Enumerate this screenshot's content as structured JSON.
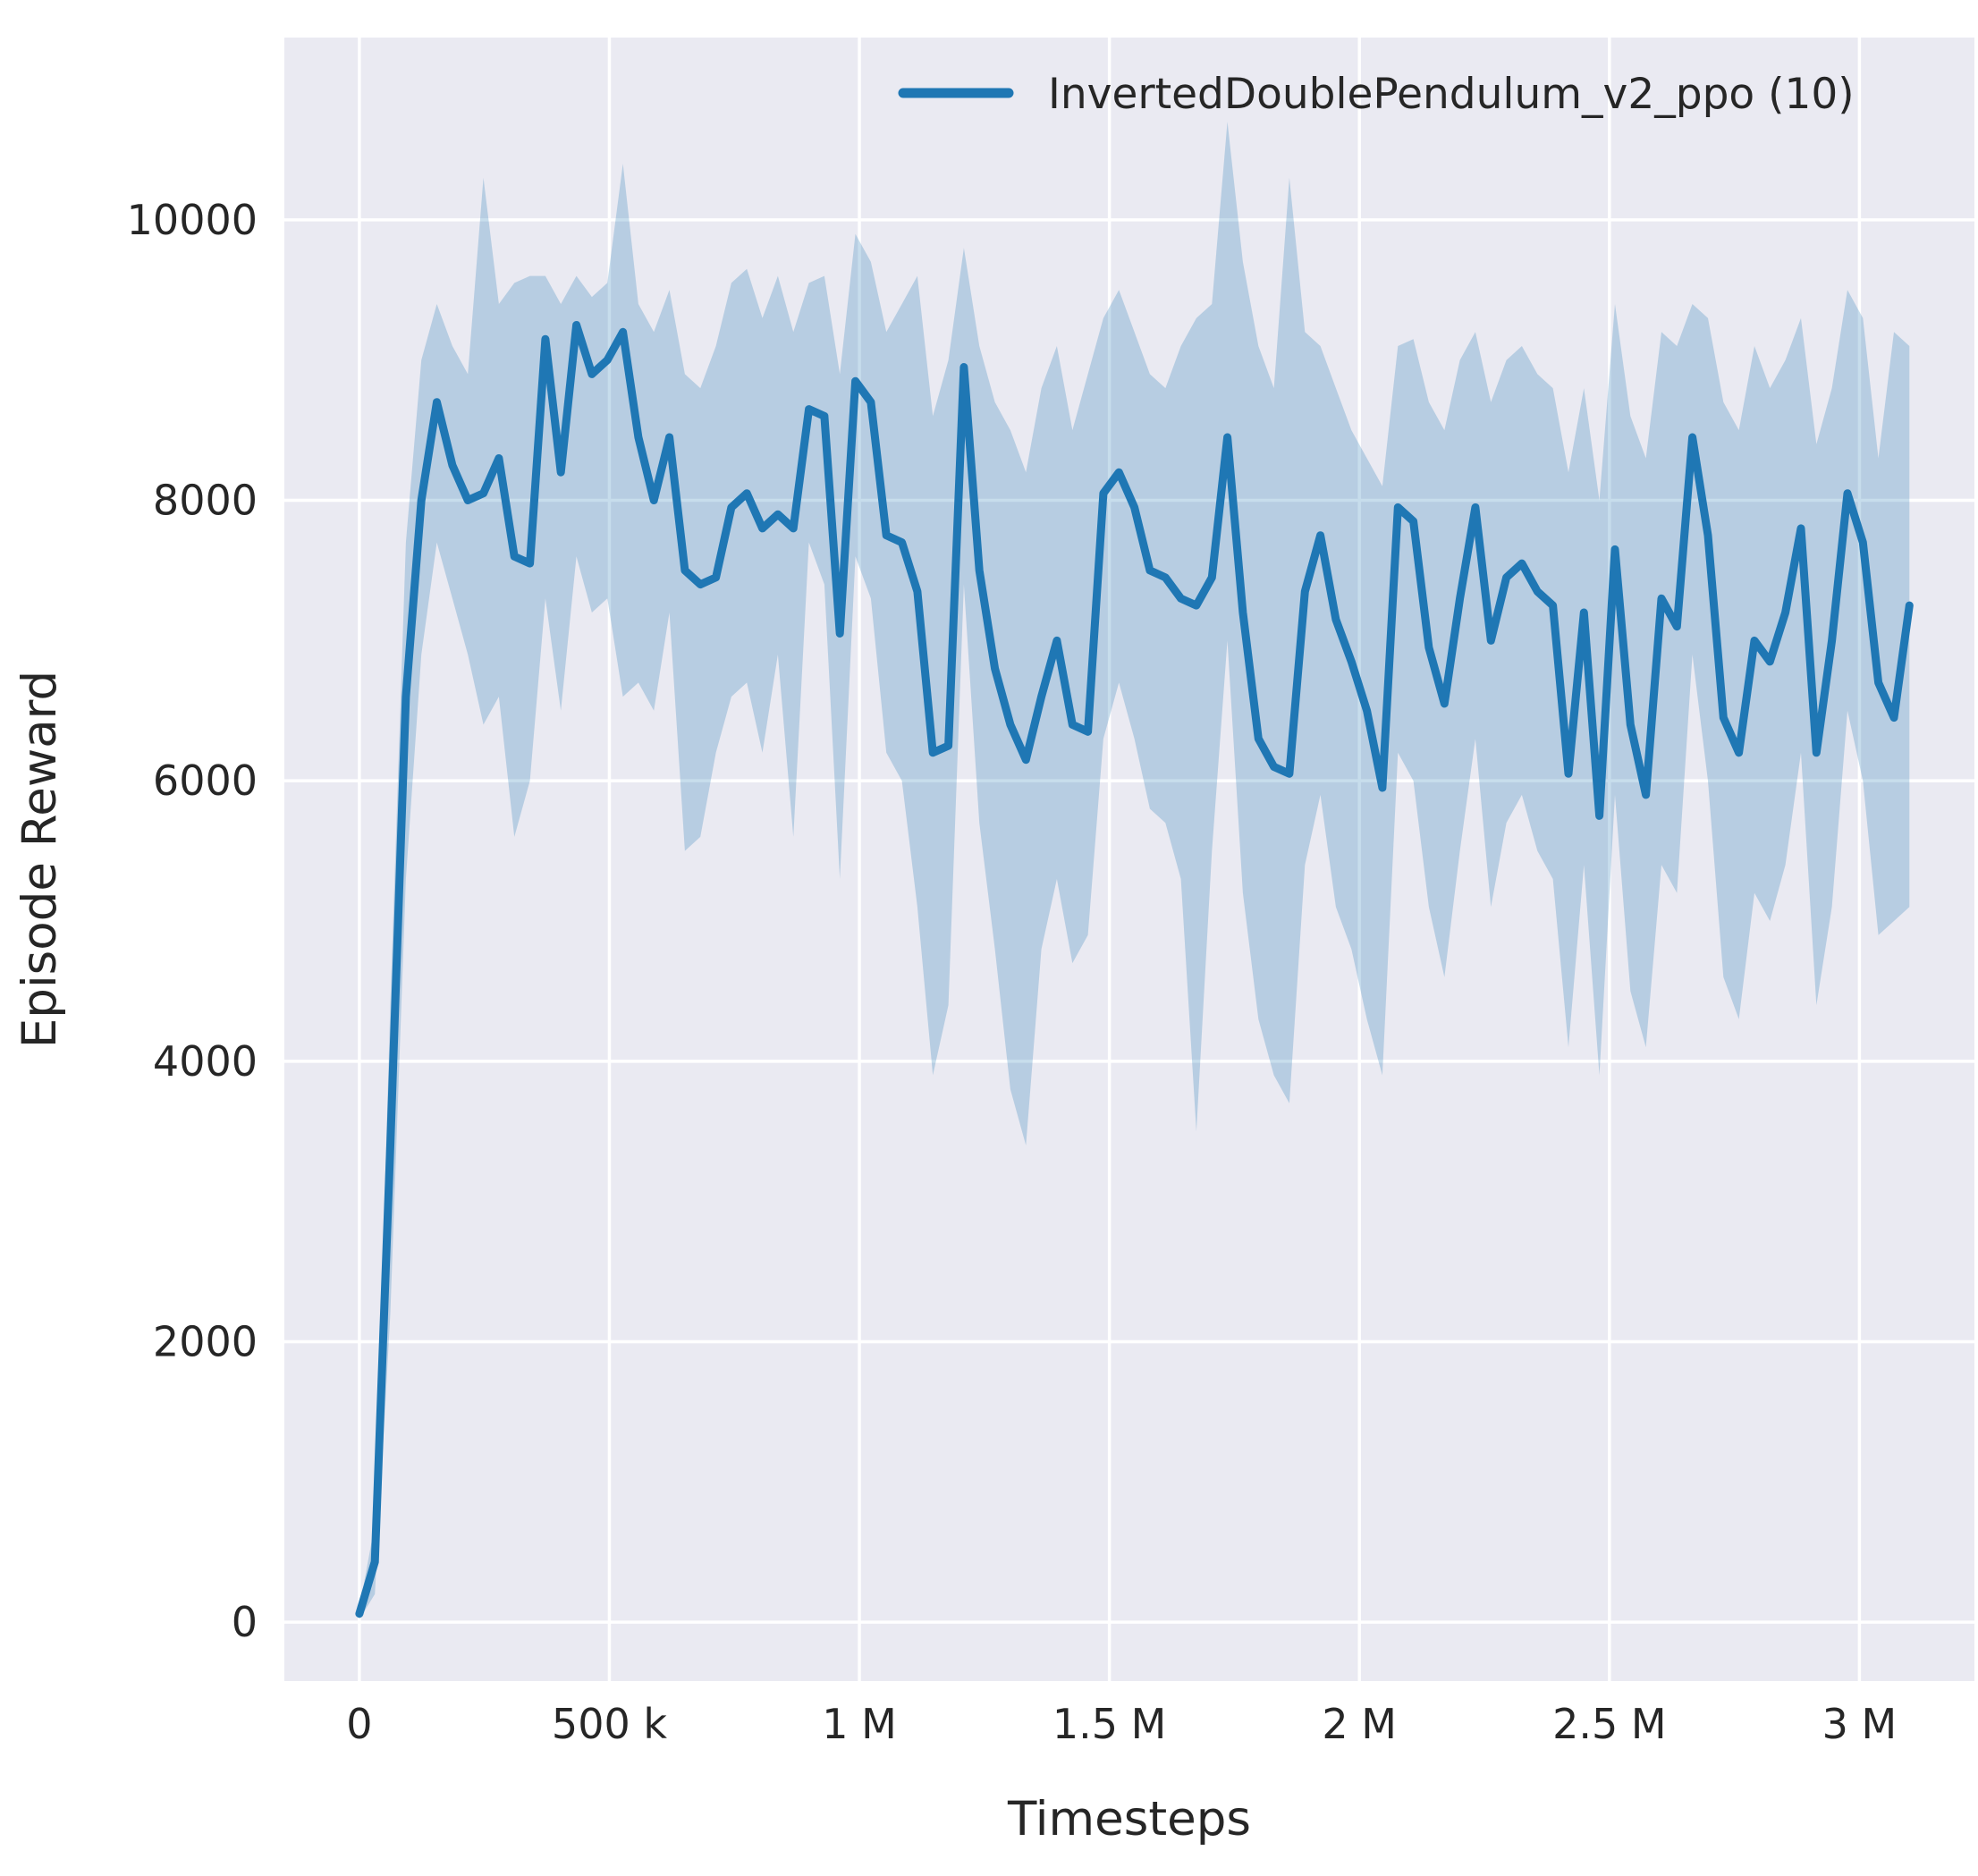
{
  "figure": {
    "legend": {
      "label": "InvertedDoublePendulum_v2_ppo (10)",
      "color": "#1f77b4"
    }
  },
  "chart_data": {
    "type": "line",
    "title": "",
    "xlabel": "Timesteps",
    "ylabel": "Episode Reward",
    "legend_position": "upper right",
    "grid": true,
    "background": "#eaeaf2",
    "line_color": "#1f77b4",
    "band_color": "#1f77b4",
    "band_opacity": 0.25,
    "xlim": [
      -150000,
      3230000
    ],
    "ylim": [
      -420,
      11300
    ],
    "x_ticks": [
      0,
      500000,
      1000000,
      1500000,
      2000000,
      2500000,
      3000000
    ],
    "x_tick_labels": [
      "0",
      "500 k",
      "1 M",
      "1.5 M",
      "2 M",
      "2.5 M",
      "3 M"
    ],
    "y_ticks": [
      0,
      2000,
      4000,
      6000,
      8000,
      10000
    ],
    "y_tick_labels": [
      "0",
      "2000",
      "4000",
      "6000",
      "8000",
      "10000"
    ],
    "series": [
      {
        "name": "InvertedDoublePendulum_v2_ppo (10)",
        "x_start": 0,
        "x_step": 31000,
        "mean": [
          60,
          430,
          3400,
          6600,
          8000,
          8700,
          8250,
          8000,
          8050,
          8300,
          7600,
          7550,
          9150,
          8200,
          9250,
          8900,
          9000,
          9200,
          8450,
          8000,
          8450,
          7500,
          7400,
          7450,
          7950,
          8050,
          7800,
          7900,
          7800,
          8650,
          8600,
          7050,
          8850,
          8700,
          7750,
          7700,
          7350,
          6200,
          6250,
          8950,
          7500,
          6800,
          6400,
          6150,
          6600,
          7000,
          6400,
          6350,
          8050,
          8200,
          7950,
          7500,
          7450,
          7300,
          7250,
          7450,
          8450,
          7200,
          6300,
          6100,
          6050,
          7350,
          7750,
          7150,
          6850,
          6500,
          5950,
          7950,
          7850,
          6950,
          6550,
          7300,
          7950,
          7000,
          7450,
          7550,
          7350,
          7250,
          6050,
          7200,
          5750,
          7650,
          6400,
          5900,
          7300,
          7100,
          8450,
          7750,
          6450,
          6200,
          7000,
          6850,
          7200,
          7800,
          6200,
          7000,
          8050,
          7700,
          6700,
          6450,
          7250
        ],
        "band_upper": [
          100,
          700,
          4400,
          7700,
          9000,
          9400,
          9100,
          8900,
          10300,
          9400,
          9550,
          9600,
          9600,
          9400,
          9600,
          9450,
          9550,
          10400,
          9400,
          9200,
          9500,
          8900,
          8800,
          9100,
          9550,
          9650,
          9300,
          9600,
          9200,
          9550,
          9600,
          8900,
          9900,
          9700,
          9200,
          9400,
          9600,
          8600,
          9000,
          9800,
          9100,
          8700,
          8500,
          8200,
          8800,
          9100,
          8500,
          8900,
          9300,
          9500,
          9200,
          8900,
          8800,
          9100,
          9300,
          9400,
          10700,
          9700,
          9100,
          8800,
          10300,
          9200,
          9100,
          8800,
          8500,
          8300,
          8100,
          9100,
          9150,
          8700,
          8500,
          9000,
          9200,
          8700,
          9000,
          9100,
          8900,
          8800,
          8200,
          8800,
          8000,
          9400,
          8600,
          8300,
          9200,
          9100,
          9400,
          9300,
          8700,
          8500,
          9100,
          8800,
          9000,
          9300,
          8400,
          8800,
          9500,
          9300,
          8300,
          9200,
          9100
        ],
        "band_lower": [
          20,
          200,
          2200,
          5300,
          6900,
          7700,
          7300,
          6900,
          6400,
          6600,
          5600,
          6000,
          7300,
          6500,
          7600,
          7200,
          7300,
          6600,
          6700,
          6500,
          7200,
          5500,
          5600,
          6200,
          6600,
          6700,
          6200,
          6900,
          5600,
          7700,
          7400,
          5300,
          7600,
          7300,
          6200,
          6000,
          5100,
          3900,
          4400,
          7400,
          5700,
          4800,
          3800,
          3400,
          4800,
          5300,
          4700,
          4900,
          6300,
          6700,
          6300,
          5800,
          5700,
          5300,
          3500,
          5500,
          7000,
          5200,
          4300,
          3900,
          3700,
          5400,
          5900,
          5100,
          4800,
          4300,
          3900,
          6200,
          6000,
          5100,
          4600,
          5500,
          6300,
          5100,
          5700,
          5900,
          5500,
          5300,
          4100,
          5400,
          3900,
          5900,
          4500,
          4100,
          5400,
          5200,
          6900,
          6000,
          4600,
          4300,
          5200,
          5000,
          5400,
          6200,
          4400,
          5100,
          6500,
          6000,
          4900,
          5000,
          5100
        ]
      }
    ]
  }
}
